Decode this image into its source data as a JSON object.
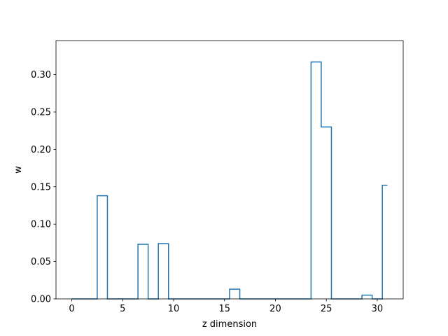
{
  "chart_data": {
    "type": "step",
    "title": "",
    "xlabel": "z dimension",
    "ylabel": "w",
    "xlim": [
      -1.55,
      32.55
    ],
    "ylim": [
      0,
      0.3455
    ],
    "grid": false,
    "legend": "none",
    "colors": {
      "series": "#1f77b4",
      "axes": "#000000",
      "background": "#ffffff"
    },
    "x_ticks": [
      {
        "value": 0,
        "label": "0"
      },
      {
        "value": 5,
        "label": "5"
      },
      {
        "value": 10,
        "label": "10"
      },
      {
        "value": 15,
        "label": "15"
      },
      {
        "value": 20,
        "label": "20"
      },
      {
        "value": 25,
        "label": "25"
      },
      {
        "value": 30,
        "label": "30"
      }
    ],
    "y_ticks": [
      {
        "value": 0.0,
        "label": "0.00"
      },
      {
        "value": 0.05,
        "label": "0.05"
      },
      {
        "value": 0.1,
        "label": "0.10"
      },
      {
        "value": 0.15,
        "label": "0.15"
      },
      {
        "value": 0.2,
        "label": "0.20"
      },
      {
        "value": 0.25,
        "label": "0.25"
      },
      {
        "value": 0.3,
        "label": "0.30"
      }
    ],
    "x": [
      0,
      1,
      2,
      3,
      4,
      5,
      6,
      7,
      8,
      9,
      10,
      11,
      12,
      13,
      14,
      15,
      16,
      17,
      18,
      19,
      20,
      21,
      22,
      23,
      24,
      25,
      26,
      27,
      28,
      29,
      30,
      31
    ],
    "values": [
      0,
      0,
      0,
      0.138,
      0,
      0,
      0,
      0.073,
      0,
      0.074,
      0,
      0,
      0,
      0,
      0,
      0,
      0.013,
      0,
      0,
      0,
      0,
      0,
      0,
      0,
      0.317,
      0.23,
      0,
      0,
      0,
      0.005,
      0,
      0.152
    ]
  }
}
